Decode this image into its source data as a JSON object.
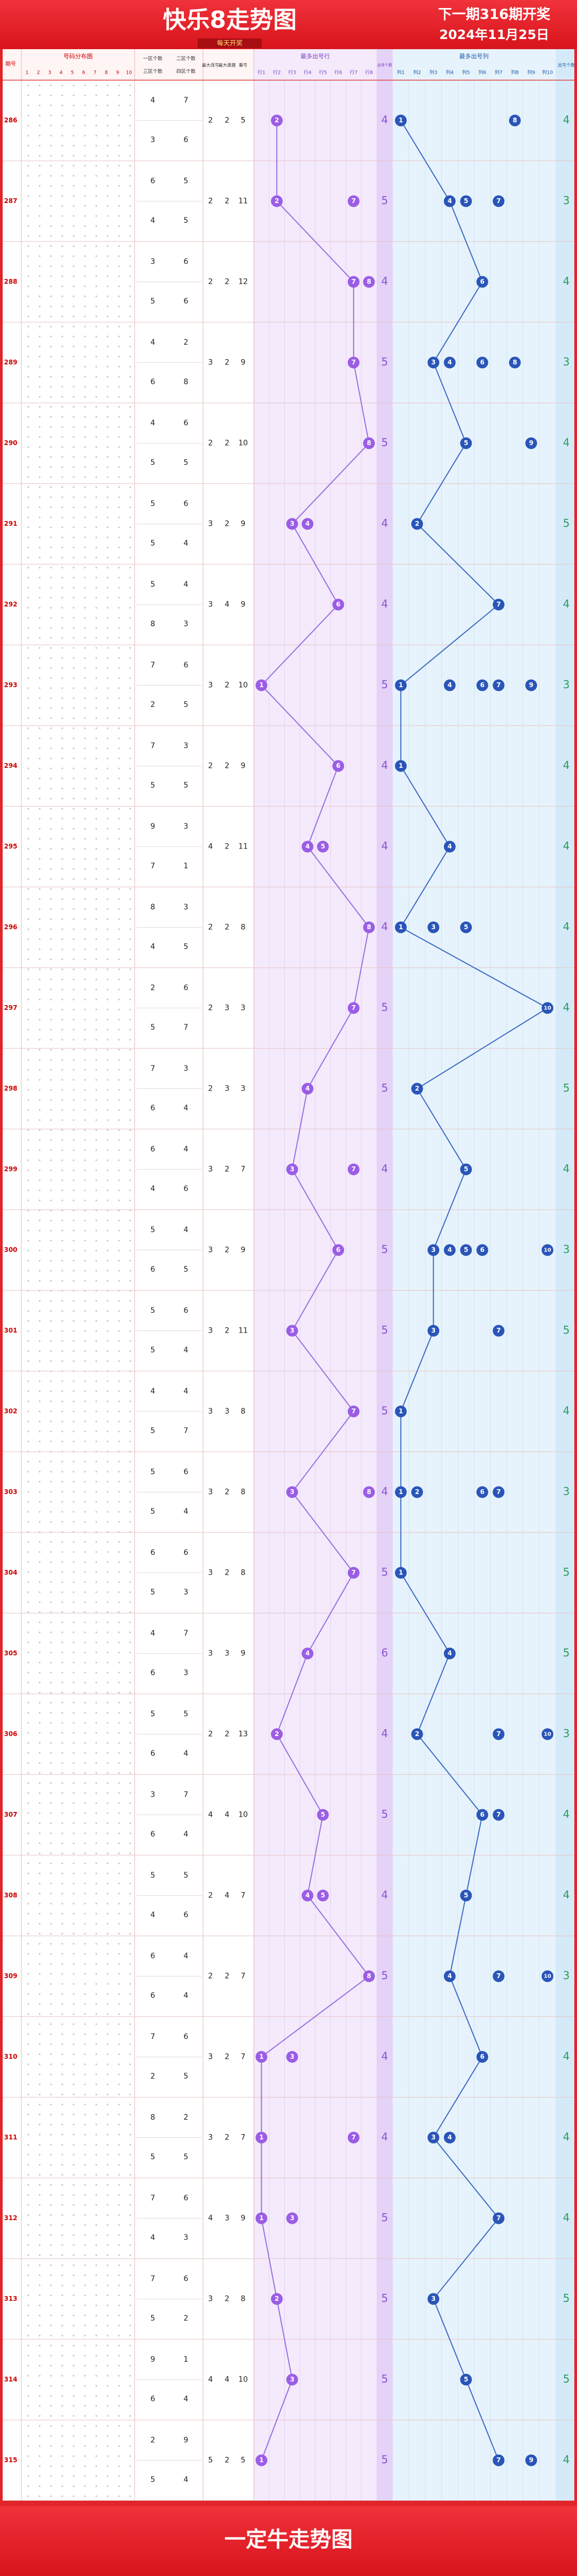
{
  "header": {
    "title": "快乐8走势图",
    "next_issue": "下一期316期开奖",
    "date": "2024年11月25日",
    "subtitle": "每天开奖"
  },
  "columns": {
    "issue": "期号",
    "distribution": "号码分布图",
    "dist_cols": [
      1,
      2,
      3,
      4,
      5,
      6,
      7,
      8,
      9,
      10
    ],
    "zone_a": "一区个数",
    "zone_b": "二区个数",
    "zone_c": "三区个数",
    "zone_d": "四区个数",
    "stats": [
      "最大连号",
      "最大遗漏",
      "重号"
    ],
    "row_panel": "最多出号行",
    "row_labels": [
      "行1",
      "行2",
      "行3",
      "行4",
      "行5",
      "行6",
      "行7",
      "行8"
    ],
    "row_count": "出号个数",
    "col_panel": "最多出号列",
    "col_labels": [
      "列1",
      "列2",
      "列3",
      "列4",
      "列5",
      "列6",
      "列7",
      "列8",
      "列9",
      "列10"
    ],
    "col_count": "出号个数"
  },
  "rows": [
    {
      "issue": "286",
      "zones": [
        4,
        7,
        3,
        6
      ],
      "stats": [
        2,
        2,
        5
      ],
      "row_hits": [
        2
      ],
      "row_count": 4,
      "col_hits": [
        1,
        8
      ],
      "col_count": 4
    },
    {
      "issue": "287",
      "zones": [
        6,
        5,
        4,
        5
      ],
      "stats": [
        2,
        2,
        11
      ],
      "row_hits": [
        2,
        7
      ],
      "row_count": 5,
      "col_hits": [
        4,
        5,
        7
      ],
      "col_count": 3
    },
    {
      "issue": "288",
      "zones": [
        3,
        6,
        5,
        6
      ],
      "stats": [
        2,
        2,
        12
      ],
      "row_hits": [
        7,
        8
      ],
      "row_count": 4,
      "col_hits": [
        6
      ],
      "col_count": 4
    },
    {
      "issue": "289",
      "zones": [
        4,
        2,
        6,
        8
      ],
      "stats": [
        3,
        2,
        9
      ],
      "row_hits": [
        7
      ],
      "row_count": 5,
      "col_hits": [
        3,
        4,
        6,
        8
      ],
      "col_count": 3
    },
    {
      "issue": "290",
      "zones": [
        4,
        6,
        5,
        5
      ],
      "stats": [
        2,
        2,
        10
      ],
      "row_hits": [
        8
      ],
      "row_count": 5,
      "col_hits": [
        5,
        9
      ],
      "col_count": 4
    },
    {
      "issue": "291",
      "zones": [
        5,
        6,
        5,
        4
      ],
      "stats": [
        3,
        2,
        9
      ],
      "row_hits": [
        3,
        4
      ],
      "row_count": 4,
      "col_hits": [
        2
      ],
      "col_count": 5
    },
    {
      "issue": "292",
      "zones": [
        5,
        4,
        8,
        3
      ],
      "stats": [
        3,
        4,
        9
      ],
      "row_hits": [
        6
      ],
      "row_count": 4,
      "col_hits": [
        7
      ],
      "col_count": 4
    },
    {
      "issue": "293",
      "zones": [
        7,
        6,
        2,
        5
      ],
      "stats": [
        3,
        2,
        10
      ],
      "row_hits": [
        1
      ],
      "row_count": 5,
      "col_hits": [
        1,
        4,
        6,
        7,
        9
      ],
      "col_count": 3
    },
    {
      "issue": "294",
      "zones": [
        7,
        3,
        5,
        5
      ],
      "stats": [
        2,
        2,
        9
      ],
      "row_hits": [
        6
      ],
      "row_count": 4,
      "col_hits": [
        1
      ],
      "col_count": 4
    },
    {
      "issue": "295",
      "zones": [
        9,
        3,
        7,
        1
      ],
      "stats": [
        4,
        2,
        11
      ],
      "row_hits": [
        4,
        5
      ],
      "row_count": 4,
      "col_hits": [
        4
      ],
      "col_count": 4
    },
    {
      "issue": "296",
      "zones": [
        8,
        3,
        4,
        5
      ],
      "stats": [
        2,
        2,
        8
      ],
      "row_hits": [
        8
      ],
      "row_count": 4,
      "col_hits": [
        1,
        3,
        5
      ],
      "col_count": 4
    },
    {
      "issue": "297",
      "zones": [
        2,
        6,
        5,
        7
      ],
      "stats": [
        2,
        3,
        3
      ],
      "row_hits": [
        7
      ],
      "row_count": 5,
      "col_hits": [
        10
      ],
      "col_count": 4
    },
    {
      "issue": "298",
      "zones": [
        7,
        3,
        6,
        4
      ],
      "stats": [
        2,
        3,
        3
      ],
      "row_hits": [
        4
      ],
      "row_count": 5,
      "col_hits": [
        2
      ],
      "col_count": 5
    },
    {
      "issue": "299",
      "zones": [
        6,
        4,
        4,
        6
      ],
      "stats": [
        3,
        2,
        7
      ],
      "row_hits": [
        3,
        7
      ],
      "row_count": 4,
      "col_hits": [
        5
      ],
      "col_count": 4
    },
    {
      "issue": "300",
      "zones": [
        5,
        4,
        6,
        5
      ],
      "stats": [
        3,
        2,
        9
      ],
      "row_hits": [
        6
      ],
      "row_count": 5,
      "col_hits": [
        3,
        4,
        5,
        6,
        10
      ],
      "col_count": 3
    },
    {
      "issue": "301",
      "zones": [
        5,
        6,
        5,
        4
      ],
      "stats": [
        3,
        2,
        11
      ],
      "row_hits": [
        3
      ],
      "row_count": 5,
      "col_hits": [
        3,
        7
      ],
      "col_count": 5
    },
    {
      "issue": "302",
      "zones": [
        4,
        4,
        5,
        7
      ],
      "stats": [
        3,
        3,
        8
      ],
      "row_hits": [
        7
      ],
      "row_count": 5,
      "col_hits": [
        1
      ],
      "col_count": 4
    },
    {
      "issue": "303",
      "zones": [
        5,
        6,
        5,
        4
      ],
      "stats": [
        3,
        2,
        8
      ],
      "row_hits": [
        3,
        8
      ],
      "row_count": 4,
      "col_hits": [
        1,
        2,
        6,
        7
      ],
      "col_count": 3
    },
    {
      "issue": "304",
      "zones": [
        6,
        6,
        5,
        3
      ],
      "stats": [
        3,
        2,
        8
      ],
      "row_hits": [
        7
      ],
      "row_count": 5,
      "col_hits": [
        1
      ],
      "col_count": 5
    },
    {
      "issue": "305",
      "zones": [
        4,
        7,
        6,
        3
      ],
      "stats": [
        3,
        3,
        9
      ],
      "row_hits": [
        4
      ],
      "row_count": 6,
      "col_hits": [
        4
      ],
      "col_count": 5
    },
    {
      "issue": "306",
      "zones": [
        5,
        5,
        6,
        4
      ],
      "stats": [
        2,
        2,
        13
      ],
      "row_hits": [
        2
      ],
      "row_count": 4,
      "col_hits": [
        2,
        7,
        10
      ],
      "col_count": 3
    },
    {
      "issue": "307",
      "zones": [
        3,
        7,
        6,
        4
      ],
      "stats": [
        4,
        4,
        10
      ],
      "row_hits": [
        5
      ],
      "row_count": 5,
      "col_hits": [
        6,
        7
      ],
      "col_count": 4
    },
    {
      "issue": "308",
      "zones": [
        5,
        5,
        4,
        6
      ],
      "stats": [
        2,
        4,
        7
      ],
      "row_hits": [
        4,
        5
      ],
      "row_count": 4,
      "col_hits": [
        5
      ],
      "col_count": 4
    },
    {
      "issue": "309",
      "zones": [
        6,
        4,
        6,
        4
      ],
      "stats": [
        2,
        2,
        7
      ],
      "row_hits": [
        8
      ],
      "row_count": 5,
      "col_hits": [
        4,
        7,
        10
      ],
      "col_count": 3
    },
    {
      "issue": "310",
      "zones": [
        7,
        6,
        2,
        5
      ],
      "stats": [
        3,
        2,
        7
      ],
      "row_hits": [
        1,
        3
      ],
      "row_count": 4,
      "col_hits": [
        6
      ],
      "col_count": 4
    },
    {
      "issue": "311",
      "zones": [
        8,
        2,
        5,
        5
      ],
      "stats": [
        3,
        2,
        7
      ],
      "row_hits": [
        1,
        7
      ],
      "row_count": 4,
      "col_hits": [
        3,
        4
      ],
      "col_count": 4
    },
    {
      "issue": "312",
      "zones": [
        7,
        6,
        4,
        3
      ],
      "stats": [
        4,
        3,
        9
      ],
      "row_hits": [
        1,
        3
      ],
      "row_count": 5,
      "col_hits": [
        7
      ],
      "col_count": 4
    },
    {
      "issue": "313",
      "zones": [
        7,
        6,
        5,
        2
      ],
      "stats": [
        3,
        2,
        8
      ],
      "row_hits": [
        2
      ],
      "row_count": 5,
      "col_hits": [
        3
      ],
      "col_count": 5
    },
    {
      "issue": "314",
      "zones": [
        9,
        1,
        6,
        4
      ],
      "stats": [
        4,
        4,
        10
      ],
      "row_hits": [
        3
      ],
      "row_count": 5,
      "col_hits": [
        5
      ],
      "col_count": 5
    },
    {
      "issue": "315",
      "zones": [
        2,
        9,
        5,
        4
      ],
      "stats": [
        5,
        2,
        5
      ],
      "row_hits": [
        1
      ],
      "row_count": 5,
      "col_hits": [
        7,
        9
      ],
      "col_count": 4
    }
  ],
  "footer": "一定牛走势图"
}
